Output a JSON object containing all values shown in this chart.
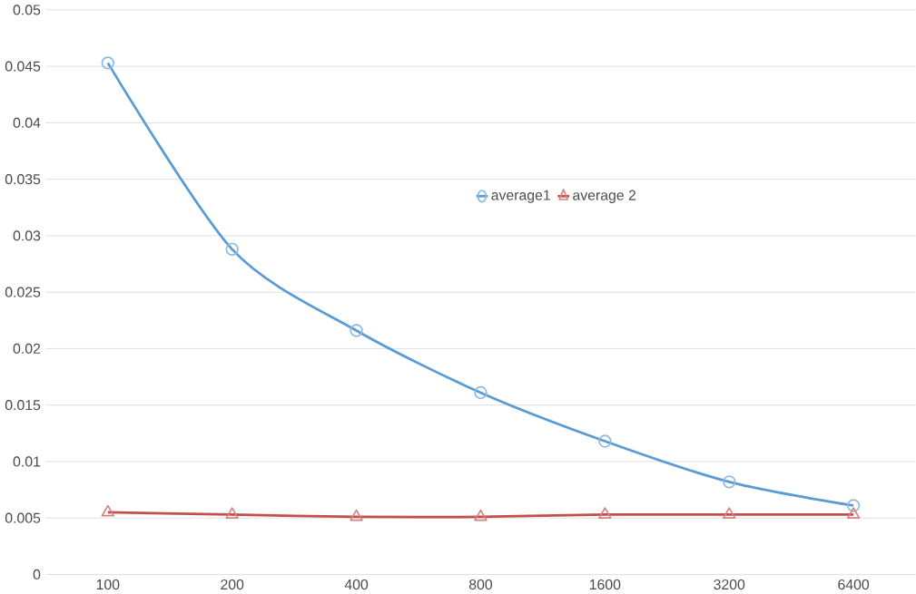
{
  "chart_data": {
    "type": "line",
    "categories": [
      "100",
      "200",
      "400",
      "800",
      "1600",
      "3200",
      "6400"
    ],
    "series": [
      {
        "name": "average1",
        "color": "#5b9bd5",
        "marker": "circle",
        "values": [
          0.0453,
          0.0288,
          0.0216,
          0.0161,
          0.0118,
          0.0082,
          0.0061
        ]
      },
      {
        "name": "average 2",
        "color": "#c0504d",
        "marker": "triangle",
        "values": [
          0.0055,
          0.0053,
          0.0051,
          0.0051,
          0.0053,
          0.0053,
          0.0053
        ]
      }
    ],
    "ylim": [
      0,
      0.05
    ],
    "yticks": [
      0,
      0.005,
      0.01,
      0.015,
      0.02,
      0.025,
      0.03,
      0.035,
      0.04,
      0.045,
      0.05
    ],
    "grid": "y",
    "legend": "center"
  }
}
